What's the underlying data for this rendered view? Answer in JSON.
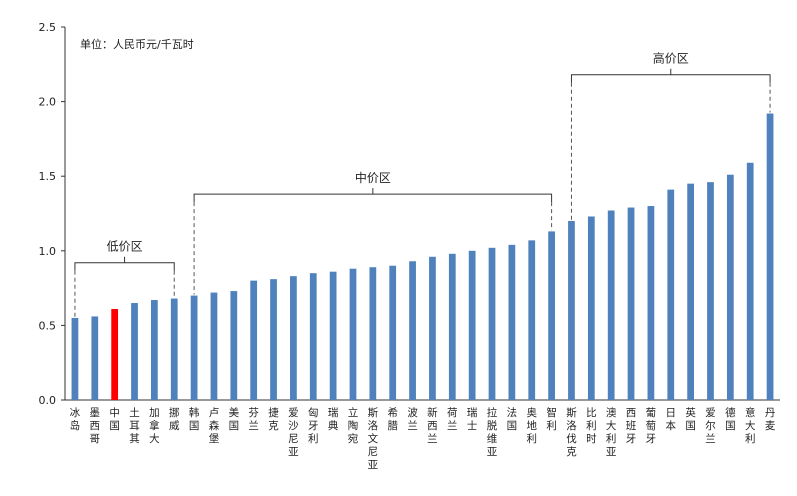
{
  "chart_data": {
    "type": "bar",
    "unit_label": "单位：人民币元/千瓦时",
    "ylim": [
      0,
      2.5
    ],
    "yticks": [
      "0.0",
      "0.5",
      "1.0",
      "1.5",
      "2.0",
      "2.5"
    ],
    "categories": [
      "冰岛",
      "墨西哥",
      "中国",
      "土耳其",
      "加拿大",
      "挪威",
      "韩国",
      "卢森堡",
      "美国",
      "芬兰",
      "捷克",
      "爱沙尼亚",
      "匈牙利",
      "瑞典",
      "立陶宛",
      "斯洛文尼亚",
      "希腊",
      "波兰",
      "新西兰",
      "荷兰",
      "瑞士",
      "拉脱维亚",
      "法国",
      "奥地利",
      "智利",
      "斯洛伐克",
      "比利时",
      "澳大利亚",
      "西班牙",
      "葡萄牙",
      "日本",
      "英国",
      "爱尔兰",
      "德国",
      "意大利",
      "丹麦"
    ],
    "values": [
      0.55,
      0.56,
      0.61,
      0.65,
      0.67,
      0.68,
      0.7,
      0.72,
      0.73,
      0.8,
      0.81,
      0.83,
      0.85,
      0.86,
      0.88,
      0.89,
      0.9,
      0.93,
      0.96,
      0.98,
      1.0,
      1.02,
      1.04,
      1.07,
      1.13,
      1.2,
      1.23,
      1.27,
      1.29,
      1.3,
      1.41,
      1.45,
      1.46,
      1.51,
      1.59,
      1.92
    ],
    "highlight": "中国",
    "bar_color": "#4F81BD",
    "highlight_color": "#FF0000",
    "zones": [
      {
        "label": "低价区",
        "from": 0,
        "to": 5,
        "bracket_y": 0.92
      },
      {
        "label": "中价区",
        "from": 6,
        "to": 24,
        "bracket_y": 1.38
      },
      {
        "label": "高价区",
        "from": 25,
        "to": 35,
        "bracket_y": 2.18
      }
    ],
    "grid": false
  }
}
